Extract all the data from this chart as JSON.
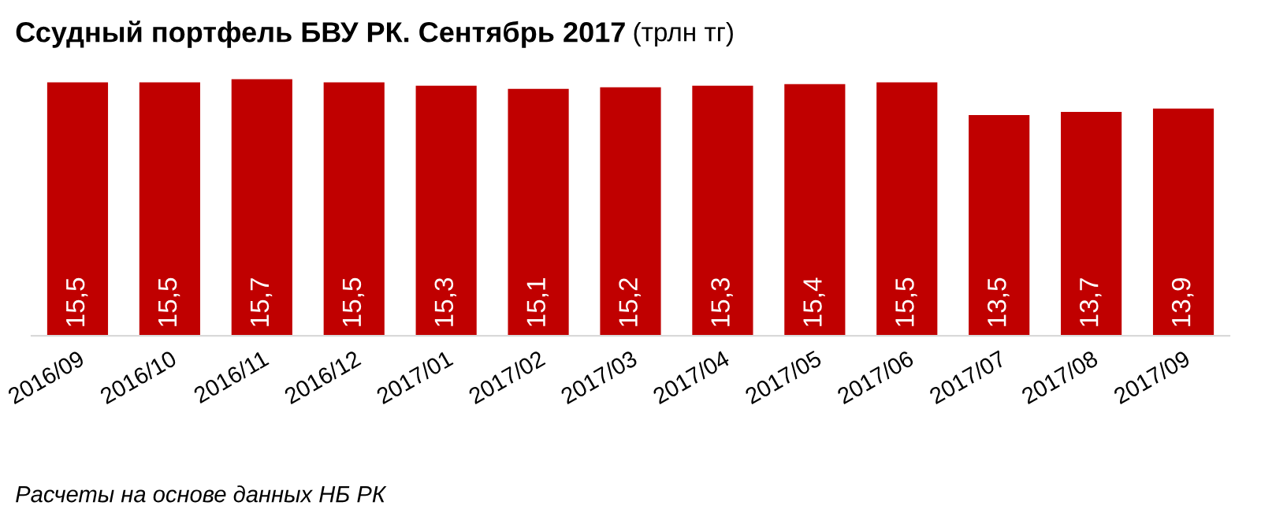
{
  "chart_data": {
    "type": "bar",
    "title": "Ссудный портфель БВУ РК. Сентябрь 2017",
    "subtitle": "(трлн тг)",
    "categories": [
      "2016/09",
      "2016/10",
      "2016/11",
      "2016/12",
      "2017/01",
      "2017/02",
      "2017/03",
      "2017/04",
      "2017/05",
      "2017/06",
      "2017/07",
      "2017/08",
      "2017/09"
    ],
    "values": [
      15.5,
      15.5,
      15.7,
      15.5,
      15.3,
      15.1,
      15.2,
      15.3,
      15.4,
      15.5,
      13.5,
      13.7,
      13.9
    ],
    "color": "#c00000",
    "value_labels": [
      "15,5",
      "15,5",
      "15,7",
      "15,5",
      "15,3",
      "15,1",
      "15,2",
      "15,3",
      "15,4",
      "15,5",
      "13,5",
      "13,7",
      "13,9"
    ],
    "tick_labels": "x",
    "grid": false,
    "legend": false,
    "annotations": [
      "Расчеты на основе данных НБ РК"
    ]
  }
}
